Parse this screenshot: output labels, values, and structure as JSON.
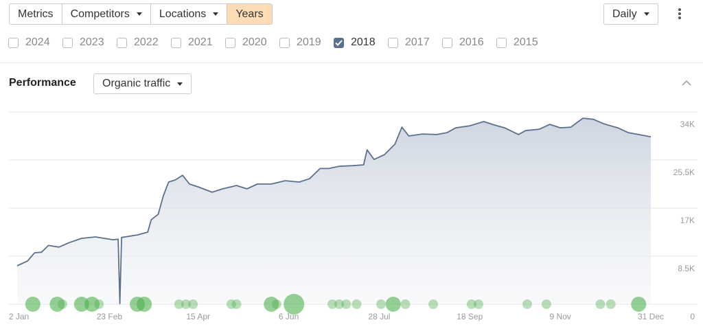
{
  "toolbar": {
    "tabs": [
      "Metrics",
      "Competitors",
      "Locations",
      "Years"
    ],
    "active_tab": 3,
    "interval": "Daily"
  },
  "years": [
    {
      "label": "2024",
      "checked": false
    },
    {
      "label": "2023",
      "checked": false
    },
    {
      "label": "2022",
      "checked": false
    },
    {
      "label": "2021",
      "checked": false
    },
    {
      "label": "2020",
      "checked": false
    },
    {
      "label": "2019",
      "checked": false
    },
    {
      "label": "2018",
      "checked": true
    },
    {
      "label": "2017",
      "checked": false
    },
    {
      "label": "2016",
      "checked": false
    },
    {
      "label": "2015",
      "checked": false
    }
  ],
  "panel": {
    "title": "Performance",
    "metric": "Organic traffic"
  },
  "chart_data": {
    "type": "area",
    "color": "#5b708c",
    "x": [
      "2018-01-01",
      "2018-01-07",
      "2018-01-11",
      "2018-01-15",
      "2018-01-19",
      "2018-01-25",
      "2018-01-31",
      "2018-02-07",
      "2018-02-15",
      "2018-02-25",
      "2018-02-28",
      "2018-03-01",
      "2018-03-02",
      "2018-03-11",
      "2018-03-17",
      "2018-03-19",
      "2018-03-23",
      "2018-03-26",
      "2018-03-29",
      "2018-04-02",
      "2018-04-06",
      "2018-04-10",
      "2018-04-15",
      "2018-04-23",
      "2018-04-29",
      "2018-05-07",
      "2018-05-13",
      "2018-05-19",
      "2018-05-27",
      "2018-06-04",
      "2018-06-12",
      "2018-06-18",
      "2018-06-24",
      "2018-06-29",
      "2018-07-05",
      "2018-07-13",
      "2018-07-19",
      "2018-07-21",
      "2018-07-25",
      "2018-07-31",
      "2018-08-06",
      "2018-08-10",
      "2018-08-14",
      "2018-08-22",
      "2018-08-30",
      "2018-09-05",
      "2018-09-10",
      "2018-09-18",
      "2018-09-26",
      "2018-10-02",
      "2018-10-08",
      "2018-10-16",
      "2018-10-20",
      "2018-10-28",
      "2018-11-03",
      "2018-11-09",
      "2018-11-15",
      "2018-11-22",
      "2018-11-28",
      "2018-12-04",
      "2018-12-12",
      "2018-12-18",
      "2018-12-24",
      "2018-12-31"
    ],
    "values": [
      6800,
      7650,
      9100,
      9200,
      10400,
      10100,
      10900,
      11650,
      11900,
      11400,
      11500,
      100,
      11800,
      12250,
      12750,
      14950,
      15900,
      19200,
      21600,
      22000,
      22800,
      21250,
      20750,
      19800,
      20400,
      21000,
      20400,
      21250,
      21250,
      21850,
      21600,
      22200,
      24000,
      24000,
      24400,
      24500,
      24650,
      27300,
      25600,
      26450,
      28300,
      31300,
      29750,
      30100,
      30000,
      30350,
      31200,
      31550,
      32300,
      31700,
      31200,
      30000,
      30700,
      30950,
      31800,
      31200,
      31300,
      32900,
      32700,
      31900,
      31200,
      30350,
      30000,
      29600
    ],
    "events": {
      "color": "#4fb04f",
      "x": [
        "2018-01-10",
        "2018-01-24",
        "2018-01-27",
        "2018-02-07",
        "2018-02-13",
        "2018-02-17",
        "2018-03-11",
        "2018-03-15",
        "2018-04-04",
        "2018-04-08",
        "2018-04-12",
        "2018-05-04",
        "2018-05-07",
        "2018-05-27",
        "2018-05-30",
        "2018-06-09",
        "2018-07-01",
        "2018-07-05",
        "2018-07-09",
        "2018-07-15",
        "2018-07-29",
        "2018-08-05",
        "2018-08-12",
        "2018-08-28",
        "2018-09-19",
        "2018-09-23",
        "2018-10-21",
        "2018-11-01",
        "2018-12-02",
        "2018-12-08",
        "2018-12-24"
      ],
      "sizes": [
        2,
        2,
        1,
        2,
        2,
        1,
        2,
        2,
        1,
        1,
        1,
        1,
        1,
        2,
        1,
        3,
        1,
        1,
        1,
        1,
        1,
        2,
        1,
        1,
        1,
        1,
        1,
        1,
        1,
        1,
        2
      ]
    },
    "xlim": [
      "2018-01-01",
      "2018-12-31"
    ],
    "xticks": [
      {
        "value": "2018-01-02",
        "label": "2 Jan"
      },
      {
        "value": "2018-02-23",
        "label": "23 Feb"
      },
      {
        "value": "2018-04-15",
        "label": "15 Apr"
      },
      {
        "value": "2018-06-06",
        "label": "6 Jun"
      },
      {
        "value": "2018-07-28",
        "label": "28 Jul"
      },
      {
        "value": "2018-09-18",
        "label": "18 Sep"
      },
      {
        "value": "2018-11-09",
        "label": "9 Nov"
      },
      {
        "value": "2018-12-31",
        "label": "31 Dec"
      }
    ],
    "ylim": [
      0,
      34000
    ],
    "yticks": [
      0,
      {
        "value": 8500,
        "label": "8.5K"
      },
      {
        "value": 17000,
        "label": "17K"
      },
      {
        "value": 25500,
        "label": "25.5K"
      },
      {
        "value": 34000,
        "label": "34K"
      }
    ],
    "grid": true
  }
}
